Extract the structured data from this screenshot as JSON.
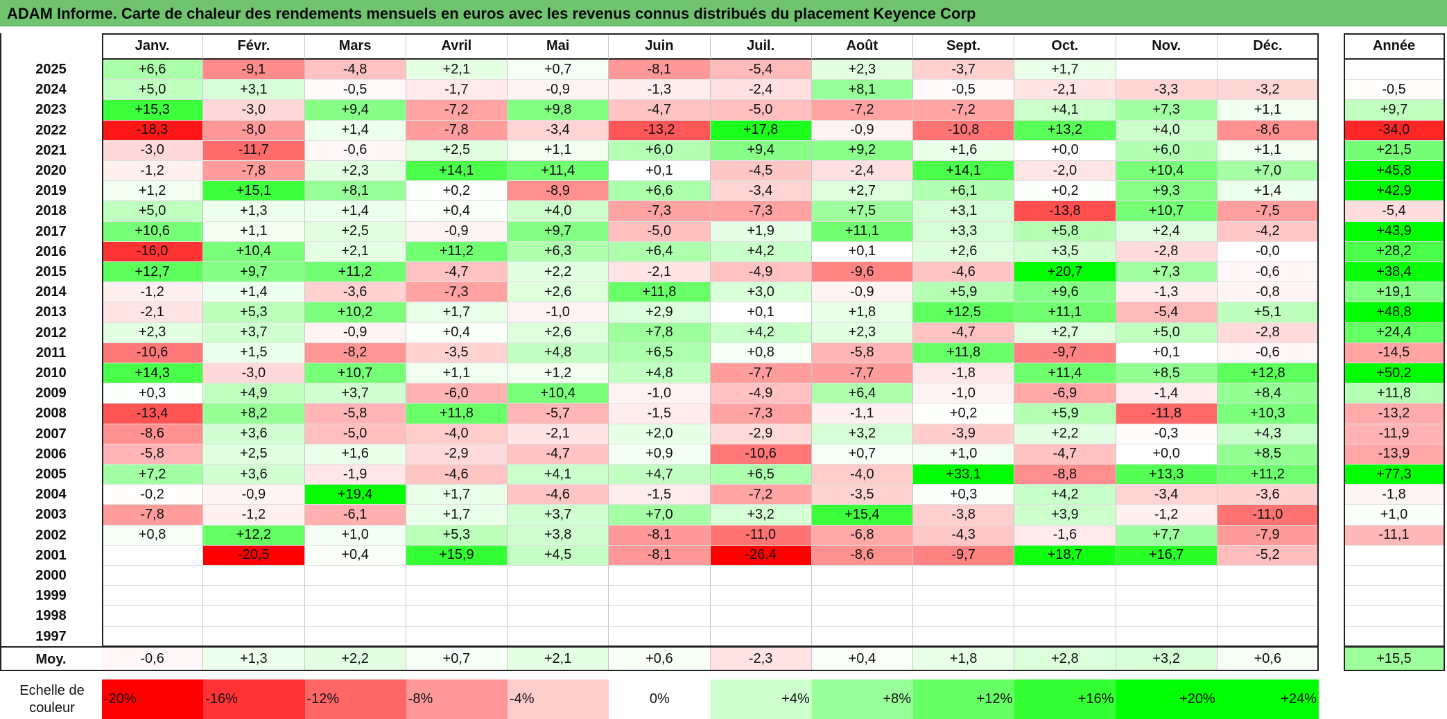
{
  "title": "ADAM Informe. Carte de chaleur des rendements mensuels en euros avec les revenus connus distribués du placement Keyence Corp",
  "chart_data": {
    "type": "heatmap",
    "title": "ADAM Informe. Carte de chaleur des rendements mensuels en euros avec les revenus connus distribués du placement Keyence Corp",
    "months": [
      "Janv.",
      "Févr.",
      "Mars",
      "Avril",
      "Mai",
      "Juin",
      "Juil.",
      "Août",
      "Sept.",
      "Oct.",
      "Nov.",
      "Déc."
    ],
    "year_header": "Année",
    "rows": [
      {
        "year": "2025",
        "values": [
          "+6,6",
          "-9,1",
          "-4,8",
          "+2,1",
          "+0,7",
          "-8,1",
          "-5,4",
          "+2,3",
          "-3,7",
          "+1,7",
          "",
          ""
        ],
        "annual": ""
      },
      {
        "year": "2024",
        "values": [
          "+5,0",
          "+3,1",
          "-0,5",
          "-1,7",
          "-0,9",
          "-1,3",
          "-2,4",
          "+8,1",
          "-0,5",
          "-2,1",
          "-3,3",
          "-3,2"
        ],
        "annual": "-0,5"
      },
      {
        "year": "2023",
        "values": [
          "+15,3",
          "-3,0",
          "+9,4",
          "-7,2",
          "+9,8",
          "-4,7",
          "-5,0",
          "-7,2",
          "-7,2",
          "+4,1",
          "+7,3",
          "+1,1"
        ],
        "annual": "+9,7"
      },
      {
        "year": "2022",
        "values": [
          "-18,3",
          "-8,0",
          "+1,4",
          "-7,8",
          "-3,4",
          "-13,2",
          "+17,8",
          "-0,9",
          "-10,8",
          "+13,2",
          "+4,0",
          "-8,6"
        ],
        "annual": "-34,0"
      },
      {
        "year": "2021",
        "values": [
          "-3,0",
          "-11,7",
          "-0,6",
          "+2,5",
          "+1,1",
          "+6,0",
          "+9,4",
          "+9,2",
          "+1,6",
          "+0,0",
          "+6,0",
          "+1,1"
        ],
        "annual": "+21,5"
      },
      {
        "year": "2020",
        "values": [
          "-1,2",
          "-7,8",
          "+2,3",
          "+14,1",
          "+11,4",
          "+0,1",
          "-4,5",
          "-2,4",
          "+14,1",
          "-2,0",
          "+10,4",
          "+7,0"
        ],
        "annual": "+45,8"
      },
      {
        "year": "2019",
        "values": [
          "+1,2",
          "+15,1",
          "+8,1",
          "+0,2",
          "-8,9",
          "+6,6",
          "-3,4",
          "+2,7",
          "+6,1",
          "+0,2",
          "+9,3",
          "+1,4"
        ],
        "annual": "+42,9"
      },
      {
        "year": "2018",
        "values": [
          "+5,0",
          "+1,3",
          "+1,4",
          "+0,4",
          "+4,0",
          "-7,3",
          "-7,3",
          "+7,5",
          "+3,1",
          "-13,8",
          "+10,7",
          "-7,5"
        ],
        "annual": "-5,4"
      },
      {
        "year": "2017",
        "values": [
          "+10,6",
          "+1,1",
          "+2,5",
          "-0,9",
          "+9,7",
          "-5,0",
          "+1,9",
          "+11,1",
          "+3,3",
          "+5,8",
          "+2,4",
          "-4,2"
        ],
        "annual": "+43,9"
      },
      {
        "year": "2016",
        "values": [
          "-16,0",
          "+10,4",
          "+2,1",
          "+11,2",
          "+6,3",
          "+6,4",
          "+4,2",
          "+0,1",
          "+2,6",
          "+3,5",
          "-2,8",
          "-0,0"
        ],
        "annual": "+28,2"
      },
      {
        "year": "2015",
        "values": [
          "+12,7",
          "+9,7",
          "+11,2",
          "-4,7",
          "+2,2",
          "-2,1",
          "-4,9",
          "-9,6",
          "-4,6",
          "+20,7",
          "+7,3",
          "-0,6"
        ],
        "annual": "+38,4"
      },
      {
        "year": "2014",
        "values": [
          "-1,2",
          "+1,4",
          "-3,6",
          "-7,3",
          "+2,6",
          "+11,8",
          "+3,0",
          "-0,9",
          "+5,9",
          "+9,6",
          "-1,3",
          "-0,8"
        ],
        "annual": "+19,1"
      },
      {
        "year": "2013",
        "values": [
          "-2,1",
          "+5,3",
          "+10,2",
          "+1,7",
          "-1,0",
          "+2,9",
          "+0,1",
          "+1,8",
          "+12,5",
          "+11,1",
          "-5,4",
          "+5,1"
        ],
        "annual": "+48,8"
      },
      {
        "year": "2012",
        "values": [
          "+2,3",
          "+3,7",
          "-0,9",
          "+0,4",
          "+2,6",
          "+7,8",
          "+4,2",
          "+2,3",
          "-4,7",
          "+2,7",
          "+5,0",
          "-2,8"
        ],
        "annual": "+24,4"
      },
      {
        "year": "2011",
        "values": [
          "-10,6",
          "+1,5",
          "-8,2",
          "-3,5",
          "+4,8",
          "+6,5",
          "+0,8",
          "-5,8",
          "+11,8",
          "-9,7",
          "+0,1",
          "-0,6"
        ],
        "annual": "-14,5"
      },
      {
        "year": "2010",
        "values": [
          "+14,3",
          "-3,0",
          "+10,7",
          "+1,1",
          "+1,2",
          "+4,8",
          "-7,7",
          "-7,7",
          "-1,8",
          "+11,4",
          "+8,5",
          "+12,8"
        ],
        "annual": "+50,2"
      },
      {
        "year": "2009",
        "values": [
          "+0,3",
          "+4,9",
          "+3,7",
          "-6,0",
          "+10,4",
          "-1,0",
          "-4,9",
          "+6,4",
          "-1,0",
          "-6,9",
          "-1,4",
          "+8,4"
        ],
        "annual": "+11,8"
      },
      {
        "year": "2008",
        "values": [
          "-13,4",
          "+8,2",
          "-5,8",
          "+11,8",
          "-5,7",
          "-1,5",
          "-7,3",
          "-1,1",
          "+0,2",
          "+5,9",
          "-11,8",
          "+10,3"
        ],
        "annual": "-13,2"
      },
      {
        "year": "2007",
        "values": [
          "-8,6",
          "+3,6",
          "-5,0",
          "-4,0",
          "-2,1",
          "+2,0",
          "-2,9",
          "+3,2",
          "-3,9",
          "+2,2",
          "-0,3",
          "+4,3"
        ],
        "annual": "-11,9"
      },
      {
        "year": "2006",
        "values": [
          "-5,8",
          "+2,5",
          "+1,6",
          "-2,9",
          "-4,7",
          "+0,9",
          "-10,6",
          "+0,7",
          "+1,0",
          "-4,7",
          "+0,0",
          "+8,5"
        ],
        "annual": "-13,9"
      },
      {
        "year": "2005",
        "values": [
          "+7,2",
          "+3,6",
          "-1,9",
          "-4,6",
          "+4,1",
          "+4,7",
          "+6,5",
          "-4,0",
          "+33,1",
          "-8,8",
          "+13,3",
          "+11,2"
        ],
        "annual": "+77,3"
      },
      {
        "year": "2004",
        "values": [
          "-0,2",
          "-0,9",
          "+19,4",
          "+1,7",
          "-4,6",
          "-1,5",
          "-7,2",
          "-3,5",
          "+0,3",
          "+4,2",
          "-3,4",
          "-3,6"
        ],
        "annual": "-1,8"
      },
      {
        "year": "2003",
        "values": [
          "-7,8",
          "-1,2",
          "-6,1",
          "+1,7",
          "+3,7",
          "+7,0",
          "+3,2",
          "+15,4",
          "-3,8",
          "+3,9",
          "-1,2",
          "-11,0"
        ],
        "annual": "+1,0"
      },
      {
        "year": "2002",
        "values": [
          "+0,8",
          "+12,2",
          "+1,0",
          "+5,3",
          "+3,8",
          "-8,1",
          "-11,0",
          "-6,8",
          "-4,3",
          "-1,6",
          "+7,7",
          "-7,9"
        ],
        "annual": "-11,1"
      },
      {
        "year": "2001",
        "values": [
          "",
          "-20,5",
          "+0,4",
          "+15,9",
          "+4,5",
          "-8,1",
          "-26,4",
          "-8,6",
          "-9,7",
          "+18,7",
          "+16,7",
          "-5,2"
        ],
        "annual": ""
      },
      {
        "year": "2000",
        "values": [
          "",
          "",
          "",
          "",
          "",
          "",
          "",
          "",
          "",
          "",
          "",
          ""
        ],
        "annual": ""
      },
      {
        "year": "1999",
        "values": [
          "",
          "",
          "",
          "",
          "",
          "",
          "",
          "",
          "",
          "",
          "",
          ""
        ],
        "annual": ""
      },
      {
        "year": "1998",
        "values": [
          "",
          "",
          "",
          "",
          "",
          "",
          "",
          "",
          "",
          "",
          "",
          ""
        ],
        "annual": ""
      },
      {
        "year": "1997",
        "values": [
          "",
          "",
          "",
          "",
          "",
          "",
          "",
          "",
          "",
          "",
          "",
          ""
        ],
        "annual": ""
      }
    ],
    "average": {
      "label": "Moy.",
      "values": [
        "-0,6",
        "+1,3",
        "+2,2",
        "+0,7",
        "+2,1",
        "+0,6",
        "-2,3",
        "+0,4",
        "+1,8",
        "+2,8",
        "+3,2",
        "+0,6"
      ],
      "annual": "+15,5"
    },
    "color_scale": {
      "label": "Echelle de couleur",
      "steps": [
        "-20%",
        "-16%",
        "-12%",
        "-8%",
        "-4%",
        "0%",
        "+4%",
        "+8%",
        "+12%",
        "+16%",
        "+20%",
        "+24%"
      ],
      "step_values": [
        -20,
        -16,
        -12,
        -8,
        -4,
        0,
        4,
        8,
        12,
        16,
        20,
        24
      ]
    },
    "colors": {
      "negative": "#ff0000",
      "neutral": "#ffffff",
      "positive": "#00e600",
      "title_bar": "#70c470"
    }
  }
}
